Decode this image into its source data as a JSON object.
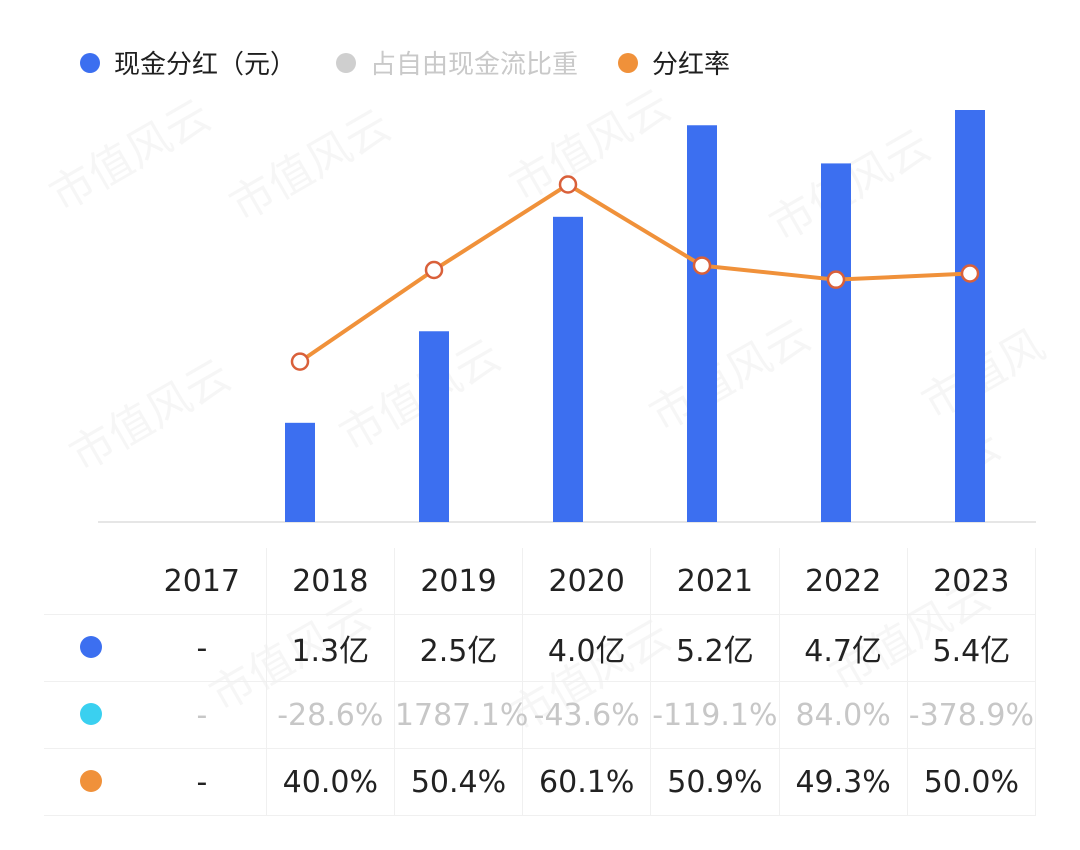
{
  "legend": [
    {
      "label": "现金分红（元）",
      "color": "#3c6ff0"
    },
    {
      "label": "占自由现金流比重",
      "color": "#cfcfcf"
    },
    {
      "label": "分红率",
      "color": "#f0913a"
    }
  ],
  "table": {
    "years": [
      "2017",
      "2018",
      "2019",
      "2020",
      "2021",
      "2022",
      "2023"
    ],
    "rows": [
      {
        "dot_color": "#3c6ff0",
        "values": [
          "-",
          "1.3亿",
          "2.5亿",
          "4.0亿",
          "5.2亿",
          "4.7亿",
          "5.4亿"
        ]
      },
      {
        "dot_color": "#3ad0f0",
        "values": [
          "-",
          "-28.6%",
          "1787.1%",
          "-43.6%",
          "-119.1%",
          "84.0%",
          "-378.9%"
        ]
      },
      {
        "dot_color": "#f0913a",
        "values": [
          "-",
          "40.0%",
          "50.4%",
          "60.1%",
          "50.9%",
          "49.3%",
          "50.0%"
        ]
      }
    ]
  },
  "chart_data": {
    "type": "bar",
    "categories": [
      "2017",
      "2018",
      "2019",
      "2020",
      "2021",
      "2022",
      "2023"
    ],
    "series": [
      {
        "name": "现金分红（元）",
        "type": "bar",
        "unit": "亿",
        "color": "#3c6ff0",
        "values": [
          null,
          1.3,
          2.5,
          4.0,
          5.2,
          4.7,
          5.4
        ]
      },
      {
        "name": "占自由现金流比重",
        "type": "hidden",
        "unit": "%",
        "color": "#cfcfcf",
        "values": [
          null,
          -28.6,
          1787.1,
          -43.6,
          -119.1,
          84.0,
          -378.9
        ]
      },
      {
        "name": "分红率",
        "type": "line",
        "unit": "%",
        "color": "#f0913a",
        "values": [
          null,
          40.0,
          50.4,
          60.1,
          50.9,
          49.3,
          50.0
        ]
      }
    ],
    "title": "",
    "xlabel": "",
    "ylabel": "",
    "bar_ylim": [
      0,
      5.4
    ],
    "line_ylim": [
      21.8,
      76.5
    ],
    "grid": false,
    "legend_position": "top-left"
  }
}
